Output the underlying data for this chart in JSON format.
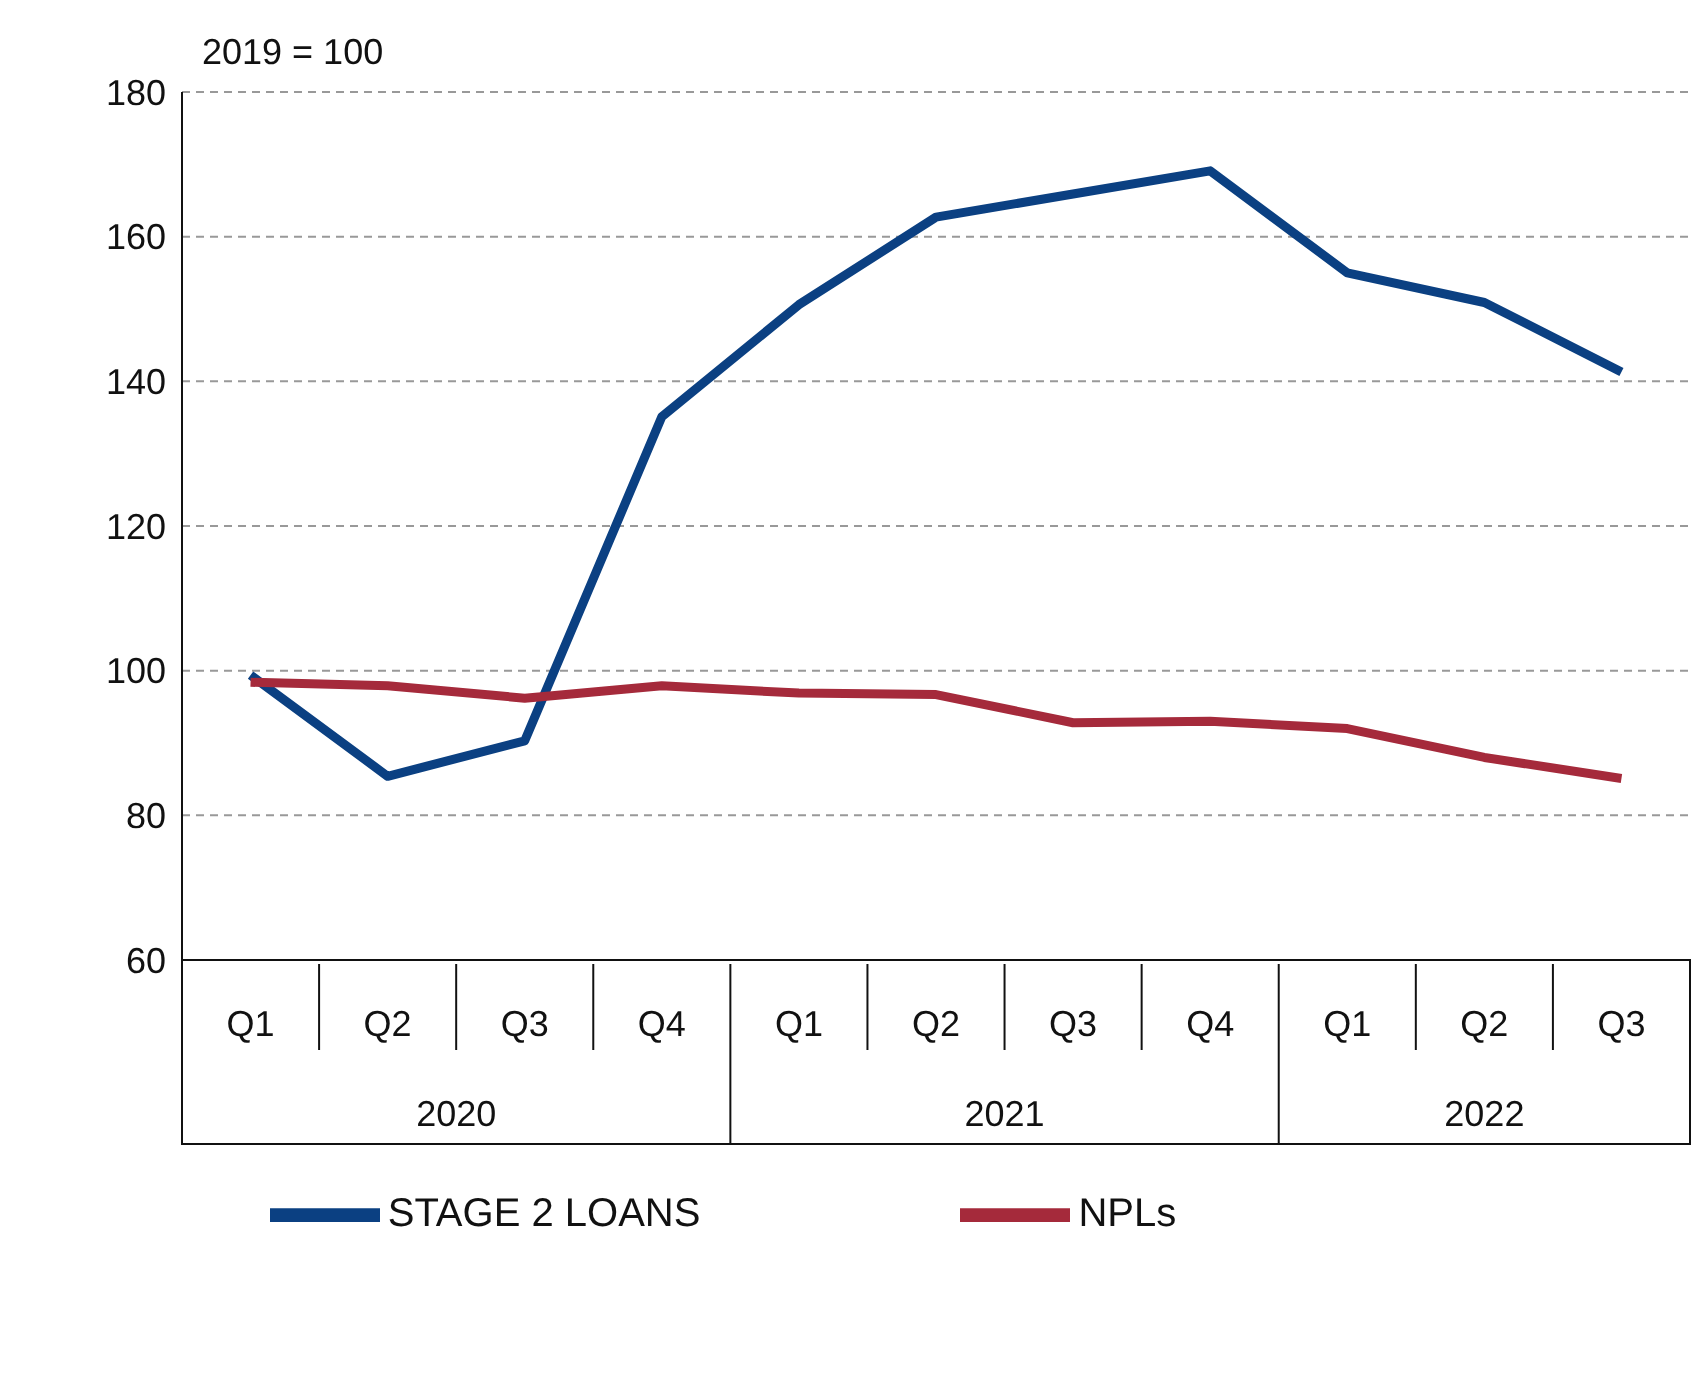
{
  "chart_data": {
    "type": "line",
    "ylabel": "2019 = 100",
    "categories": [
      "Q1",
      "Q2",
      "Q3",
      "Q4",
      "Q1",
      "Q2",
      "Q3",
      "Q4",
      "Q1",
      "Q2",
      "Q3"
    ],
    "annotations": [
      "2020",
      "2021",
      "2022"
    ],
    "series": [
      {
        "name": "STAGE 2 LOANS",
        "color": "#0b4082",
        "values": [
          99.4,
          85.4,
          90.3,
          135.1,
          150.6,
          162.7,
          165.9,
          169.1,
          155,
          150.9,
          141.3
        ]
      },
      {
        "name": "NPLs",
        "color": "#a52a3b",
        "values": [
          98.4,
          97.9,
          96.2,
          97.9,
          96.9,
          96.7,
          92.8,
          93,
          92,
          88,
          85.1
        ]
      }
    ],
    "ylim": [
      60,
      180
    ],
    "yticks": [
      60,
      80,
      100,
      120,
      140,
      160,
      180
    ],
    "grid": "y",
    "legend": "bottom",
    "marker": "none",
    "line_style": "solid"
  }
}
